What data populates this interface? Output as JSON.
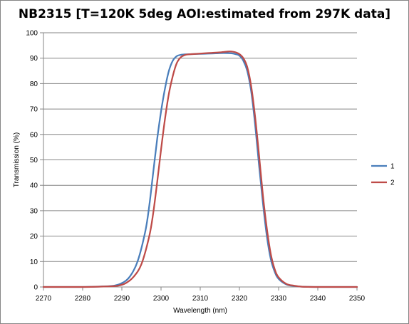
{
  "chart_data": {
    "type": "line",
    "title": "NB2315 [T=120K 5deg AOI:estimated from 297K data]",
    "xlabel": "Wavelength (nm)",
    "ylabel": "Transmission (%)",
    "xlim": [
      2270,
      2350
    ],
    "ylim": [
      0,
      100
    ],
    "x_ticks": [
      2270,
      2280,
      2290,
      2300,
      2310,
      2320,
      2330,
      2340,
      2350
    ],
    "y_ticks": [
      0,
      10,
      20,
      30,
      40,
      50,
      60,
      70,
      80,
      90,
      100
    ],
    "grid": "horizontal major gridlines",
    "legend_position": "right",
    "series": [
      {
        "name": "1",
        "color": "#4a7ebb",
        "points": [
          [
            2270,
            0
          ],
          [
            2280,
            0
          ],
          [
            2285,
            0.2
          ],
          [
            2288,
            0.5
          ],
          [
            2290,
            1.5
          ],
          [
            2292,
            4
          ],
          [
            2294,
            10
          ],
          [
            2296,
            22
          ],
          [
            2297,
            32
          ],
          [
            2298,
            45
          ],
          [
            2299,
            58
          ],
          [
            2300,
            69
          ],
          [
            2301,
            78
          ],
          [
            2302,
            85
          ],
          [
            2303,
            89
          ],
          [
            2304,
            90.8
          ],
          [
            2305,
            91.3
          ],
          [
            2306,
            91.5
          ],
          [
            2308,
            91.6
          ],
          [
            2310,
            91.7
          ],
          [
            2312,
            91.8
          ],
          [
            2314,
            91.9
          ],
          [
            2316,
            92
          ],
          [
            2318,
            91.9
          ],
          [
            2319,
            91.6
          ],
          [
            2320,
            91
          ],
          [
            2321,
            89
          ],
          [
            2322,
            85
          ],
          [
            2323,
            77
          ],
          [
            2324,
            64
          ],
          [
            2325,
            48
          ],
          [
            2326,
            33
          ],
          [
            2327,
            20
          ],
          [
            2328,
            11
          ],
          [
            2329,
            6
          ],
          [
            2330,
            3.2
          ],
          [
            2332,
            1
          ],
          [
            2334,
            0.4
          ],
          [
            2336,
            0.1
          ],
          [
            2340,
            0
          ],
          [
            2350,
            0
          ]
        ]
      },
      {
        "name": "2",
        "color": "#be4b48",
        "points": [
          [
            2270,
            0
          ],
          [
            2280,
            0
          ],
          [
            2286,
            0.2
          ],
          [
            2289,
            0.5
          ],
          [
            2291,
            1.5
          ],
          [
            2293,
            4
          ],
          [
            2295,
            9
          ],
          [
            2297,
            20
          ],
          [
            2298,
            29
          ],
          [
            2299,
            41
          ],
          [
            2300,
            54
          ],
          [
            2301,
            66
          ],
          [
            2302,
            76
          ],
          [
            2303,
            83
          ],
          [
            2304,
            88
          ],
          [
            2305,
            90.3
          ],
          [
            2306,
            91.2
          ],
          [
            2307,
            91.5
          ],
          [
            2309,
            91.7
          ],
          [
            2311,
            91.9
          ],
          [
            2313,
            92.1
          ],
          [
            2315,
            92.3
          ],
          [
            2317,
            92.6
          ],
          [
            2318,
            92.6
          ],
          [
            2319,
            92.3
          ],
          [
            2320,
            91.6
          ],
          [
            2321,
            90
          ],
          [
            2322,
            86.5
          ],
          [
            2323,
            79
          ],
          [
            2324,
            67
          ],
          [
            2325,
            52
          ],
          [
            2326,
            36
          ],
          [
            2327,
            23
          ],
          [
            2328,
            13
          ],
          [
            2329,
            7
          ],
          [
            2330,
            3.8
          ],
          [
            2332,
            1.2
          ],
          [
            2334,
            0.5
          ],
          [
            2336,
            0.1
          ],
          [
            2340,
            0
          ],
          [
            2350,
            0
          ]
        ]
      }
    ]
  }
}
